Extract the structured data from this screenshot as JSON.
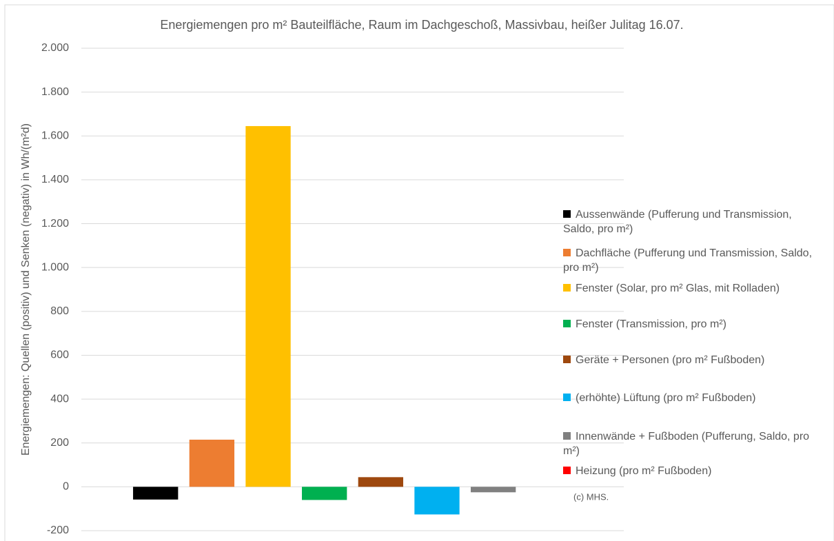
{
  "chart_data": {
    "type": "bar",
    "title": "Energiemengen pro m² Bauteilfläche, Raum im Dachgeschoß, Massivbau, heißer Julitag 16.07.",
    "y_label": "Energiemengen: Quellen (positiv) und Senken (negativ) in Wh/(m²d)",
    "annotation": "(c) MHS.",
    "categories": [
      null
    ],
    "series": [
      {
        "name": "Aussenwände (Pufferung und Transmission, Saldo, pro m²)",
        "color": "#000000",
        "values": [
          -58
        ]
      },
      {
        "name": "Dachfläche (Pufferung und Transmission, Saldo, pro m²)",
        "color": "#ed7d31",
        "values": [
          215
        ]
      },
      {
        "name": "Fenster (Solar, pro m² Glas, mit Rolladen)",
        "color": "#ffc000",
        "values": [
          1645
        ]
      },
      {
        "name": "Fenster (Transmission, pro m²)",
        "color": "#00b050",
        "values": [
          -60
        ]
      },
      {
        "name": "Geräte + Personen (pro m² Fußboden)",
        "color": "#9e480e",
        "values": [
          44
        ]
      },
      {
        "name": "(erhöhte) Lüftung (pro m² Fußboden)",
        "color": "#00b0f0",
        "values": [
          -126
        ]
      },
      {
        "name": "Innenwände + Fußboden (Pufferung, Saldo, pro m²)",
        "color": "#808080",
        "values": [
          -25
        ]
      },
      {
        "name": "Heizung (pro m² Fußboden)",
        "color": "#ff0000",
        "values": [
          0
        ]
      }
    ],
    "ylim": [
      -200,
      2000
    ],
    "yticks": [
      -200,
      0,
      200,
      400,
      600,
      800,
      {
        "value": 1000,
        "label": "1.000"
      },
      {
        "value": 1200,
        "label": "1.200"
      },
      {
        "value": 1400,
        "label": "1.400"
      },
      {
        "value": 1600,
        "label": "1.600"
      },
      {
        "value": 1800,
        "label": "1.800"
      },
      {
        "value": 2000,
        "label": "2.000"
      }
    ],
    "grid": true
  }
}
